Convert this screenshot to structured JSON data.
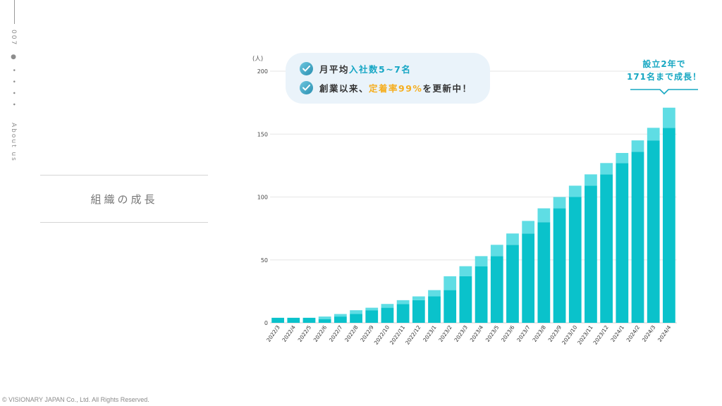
{
  "page": {
    "number": "007",
    "dots": "● • • • •",
    "section": "About us",
    "title": "組織の成長",
    "copyright": "© VISIONARY JAPAN Co., Ltd. All Rights Reserved."
  },
  "callout": {
    "line1": {
      "prefix": "月平均",
      "highlight": "入社数5~7名",
      "suffix": ""
    },
    "line2": {
      "prefix": "創業以来、",
      "highlight": "定着率99%",
      "suffix": "を更新中！"
    }
  },
  "badge": {
    "line1": "設立2年で",
    "line2": "171名まで成長！"
  },
  "colors": {
    "primary": "#0ac2cb",
    "secondary": "#5fdde4",
    "accent": "#17a7c2",
    "orange": "#f5ae1f"
  },
  "chart_data": {
    "type": "bar",
    "stacked": true,
    "unit_label": "(人)",
    "ylim": [
      0,
      200
    ],
    "yticks": [
      0,
      50,
      100,
      150,
      200
    ],
    "grid": true,
    "categories": [
      "2022/3",
      "2022/4",
      "2022/5",
      "2022/6",
      "2022/7",
      "2022/8",
      "2022/9",
      "2022/10",
      "2022/11",
      "2022/12",
      "2023/1",
      "2023/2",
      "2023/3",
      "2023/4",
      "2023/5",
      "2023/6",
      "2023/7",
      "2023/8",
      "2023/9",
      "2023/10",
      "2023/11",
      "2023/12",
      "2024/1",
      "2024/2",
      "2024/3",
      "2024/4"
    ],
    "series": [
      {
        "values": [
          4,
          4,
          4,
          3,
          5,
          7,
          10,
          12,
          15,
          18,
          21,
          26,
          37,
          45,
          53,
          62,
          71,
          80,
          91,
          100,
          109,
          118,
          127,
          136,
          145,
          155
        ]
      },
      {
        "values": [
          0,
          0,
          0,
          2,
          2,
          3,
          2,
          3,
          3,
          3,
          5,
          11,
          8,
          8,
          9,
          9,
          10,
          11,
          9,
          9,
          9,
          9,
          8,
          9,
          10,
          16
        ]
      }
    ]
  }
}
